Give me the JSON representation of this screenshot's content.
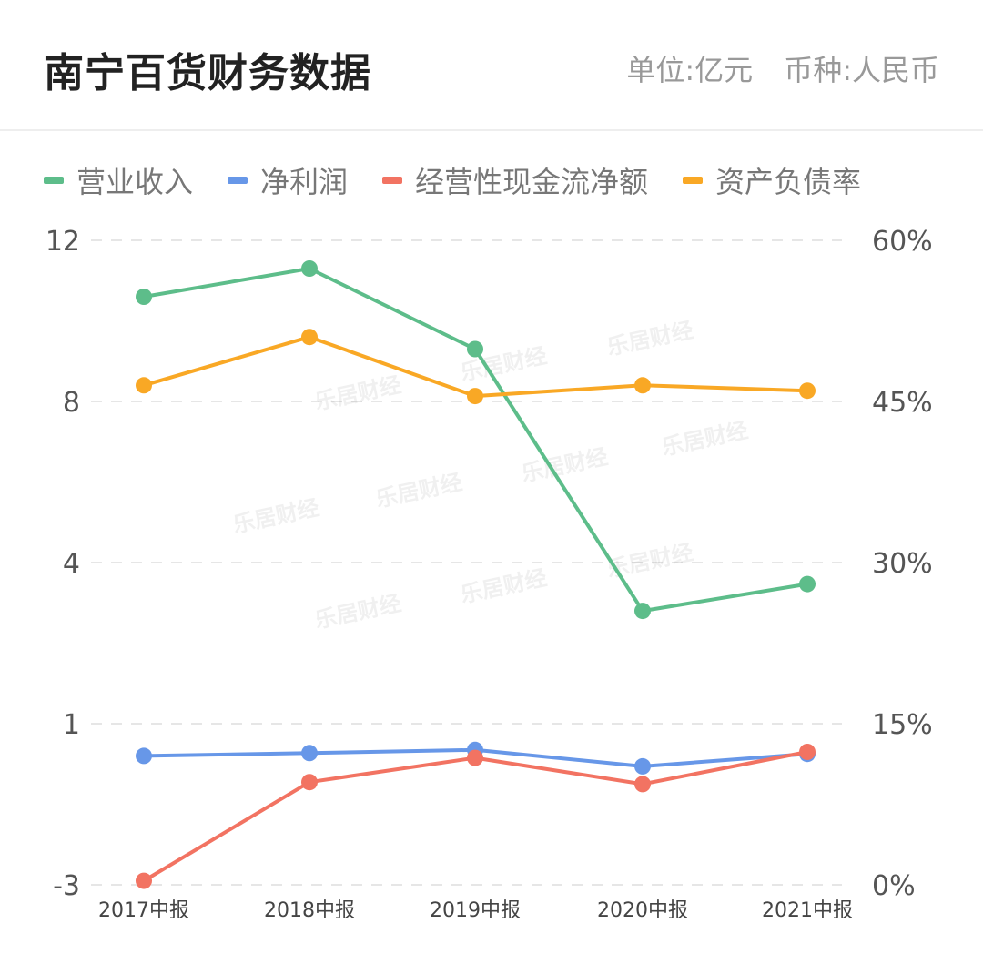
{
  "header": {
    "title": "南宁百货财务数据",
    "unit": "单位:亿元",
    "currency": "币种:人民币"
  },
  "chart_data": {
    "type": "line",
    "title": "南宁百货财务数据",
    "categories": [
      "2017中报",
      "2018中报",
      "2019中报",
      "2020中报",
      "2021中报"
    ],
    "y_left": {
      "ticks": [
        "12",
        "8",
        "4",
        "1",
        "-3"
      ]
    },
    "y_right": {
      "ticks": [
        "60%",
        "45%",
        "30%",
        "15%",
        "0%"
      ],
      "range": [
        0,
        60
      ]
    },
    "series": [
      {
        "name": "营业收入",
        "axis": "left",
        "color": "#5dbd8a",
        "values": [
          10.6,
          11.3,
          9.3,
          3.1,
          3.6
        ]
      },
      {
        "name": "净利润",
        "axis": "left",
        "color": "#6797e8",
        "values": [
          0.2,
          0.27,
          0.35,
          -0.06,
          0.25
        ]
      },
      {
        "name": "经营性现金流净额",
        "axis": "left",
        "color": "#f27362",
        "values": [
          -2.9,
          -0.45,
          0.15,
          -0.5,
          0.3
        ]
      },
      {
        "name": "资产负债率",
        "axis": "right",
        "color": "#f9a825",
        "values": [
          46.5,
          51.0,
          45.5,
          46.5,
          46.0
        ]
      }
    ],
    "grid": true,
    "legend_position": "top-left",
    "watermark": "乐居财经"
  }
}
